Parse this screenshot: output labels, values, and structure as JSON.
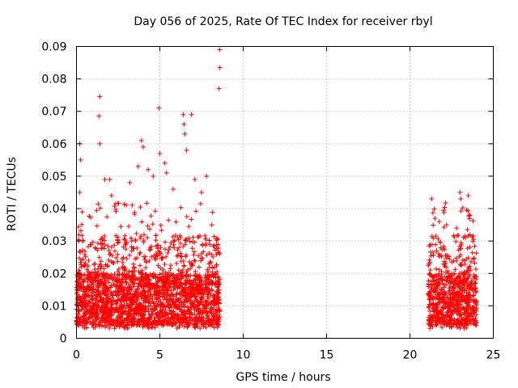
{
  "chart_data": {
    "type": "scatter",
    "title": "Day 056 of 2025, Rate Of TEC Index for receiver rbyl",
    "xlabel": "GPS time / hours",
    "ylabel": "ROTI / TECUs",
    "xlim": [
      0,
      25
    ],
    "ylim": [
      0,
      0.09
    ],
    "xticks": [
      0,
      5,
      10,
      15,
      20,
      25
    ],
    "yticks": [
      0,
      0.01,
      0.02,
      0.03,
      0.04,
      0.05,
      0.06,
      0.07,
      0.08,
      0.09
    ],
    "grid": true,
    "marker": "+",
    "series_color": "#ff0000",
    "series": [
      {
        "name": "ROTI",
        "segments": [
          {
            "x_start": 0.0,
            "x_end": 8.6,
            "baseline_low": 0.004,
            "baseline_high": 0.02
          },
          {
            "x_start": 21.1,
            "x_end": 24.0,
            "baseline_low": 0.004,
            "baseline_high": 0.02
          }
        ],
        "outliers": [
          {
            "x": 0.2,
            "y": 0.06
          },
          {
            "x": 0.25,
            "y": 0.055
          },
          {
            "x": 0.2,
            "y": 0.045
          },
          {
            "x": 0.35,
            "y": 0.039
          },
          {
            "x": 1.4,
            "y": 0.0745
          },
          {
            "x": 1.35,
            "y": 0.0685
          },
          {
            "x": 1.4,
            "y": 0.06
          },
          {
            "x": 1.7,
            "y": 0.049
          },
          {
            "x": 2.0,
            "y": 0.049
          },
          {
            "x": 2.1,
            "y": 0.044
          },
          {
            "x": 3.2,
            "y": 0.048
          },
          {
            "x": 3.7,
            "y": 0.053
          },
          {
            "x": 3.9,
            "y": 0.061
          },
          {
            "x": 4.0,
            "y": 0.059
          },
          {
            "x": 4.3,
            "y": 0.052
          },
          {
            "x": 4.6,
            "y": 0.05
          },
          {
            "x": 4.95,
            "y": 0.071
          },
          {
            "x": 5.0,
            "y": 0.057
          },
          {
            "x": 5.3,
            "y": 0.054
          },
          {
            "x": 5.4,
            "y": 0.051
          },
          {
            "x": 5.8,
            "y": 0.046
          },
          {
            "x": 6.4,
            "y": 0.069
          },
          {
            "x": 6.45,
            "y": 0.066
          },
          {
            "x": 6.5,
            "y": 0.063
          },
          {
            "x": 6.6,
            "y": 0.058
          },
          {
            "x": 6.9,
            "y": 0.069
          },
          {
            "x": 7.1,
            "y": 0.049
          },
          {
            "x": 7.5,
            "y": 0.045
          },
          {
            "x": 7.8,
            "y": 0.05
          },
          {
            "x": 8.6,
            "y": 0.089
          },
          {
            "x": 8.6,
            "y": 0.0835
          },
          {
            "x": 8.55,
            "y": 0.077
          },
          {
            "x": 21.3,
            "y": 0.043
          },
          {
            "x": 21.5,
            "y": 0.037
          },
          {
            "x": 22.2,
            "y": 0.035
          },
          {
            "x": 22.8,
            "y": 0.034
          },
          {
            "x": 23.0,
            "y": 0.045
          },
          {
            "x": 23.05,
            "y": 0.043
          },
          {
            "x": 23.5,
            "y": 0.044
          },
          {
            "x": 23.6,
            "y": 0.038
          }
        ]
      }
    ]
  }
}
